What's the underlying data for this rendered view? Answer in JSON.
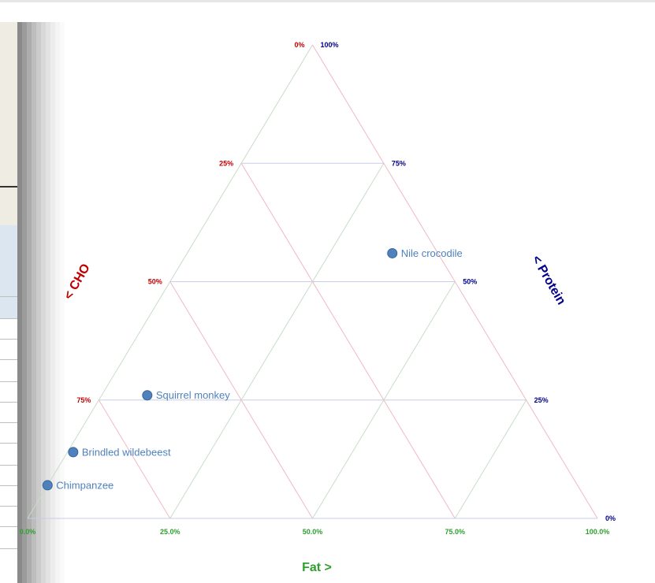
{
  "chart_data": {
    "type": "scatter",
    "subtype": "ternary",
    "axes": {
      "fat": {
        "label": "Fat >",
        "ticks": [
          "0.0%",
          "25.0%",
          "50.0%",
          "75.0%",
          "100.0%"
        ],
        "color": "#2ea02e"
      },
      "cho": {
        "label": "< CHO",
        "ticks": [
          "0%",
          "25%",
          "50%",
          "75%"
        ],
        "color": "#c00000"
      },
      "protein": {
        "label": "< Protein",
        "ticks": [
          "100%",
          "75%",
          "50%",
          "25%",
          "0%"
        ],
        "color": "#00008b"
      }
    },
    "grid_colors": {
      "protein": "#c8cde8",
      "cho": "#f0b8c4",
      "fat": "#c8dcc8"
    },
    "marker_color": "#4f81bd",
    "points": [
      {
        "name": "Nile crocodile",
        "fat": 0.36,
        "cho": 0.08,
        "protein": 0.56
      },
      {
        "name": "Squirrel monkey",
        "fat": 0.08,
        "cho": 0.66,
        "protein": 0.26
      },
      {
        "name": "Brindled wildebeest",
        "fat": 0.01,
        "cho": 0.85,
        "protein": 0.14
      },
      {
        "name": "Chimpanzee",
        "fat": 0.0,
        "cho": 0.93,
        "protein": 0.07
      }
    ]
  }
}
